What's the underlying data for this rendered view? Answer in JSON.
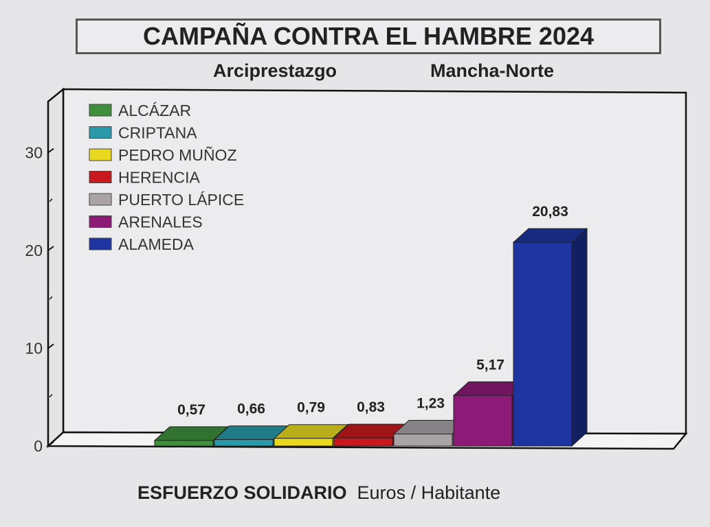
{
  "chart_data": {
    "type": "bar",
    "style": "3d",
    "title": "CAMPAÑA CONTRA EL HAMBRE 2024",
    "subtitle_left": "Arciprestazgo",
    "subtitle_right": "Mancha-Norte",
    "xlabel_bold": "ESFUERZO SOLIDARIO",
    "xlabel_rest": "Euros / Habitante",
    "ylim": [
      0,
      33
    ],
    "yticks": [
      "0",
      "10",
      "20",
      "30"
    ],
    "legend_position": "top-left",
    "categories": [
      "ALCÁZAR",
      "CRIPTANA",
      "PEDRO MUÑOZ",
      "HERENCIA",
      "PUERTO LÁPICE",
      "ARENALES",
      "ALAMEDA"
    ],
    "values": [
      0.57,
      0.66,
      0.79,
      0.83,
      1.23,
      5.17,
      20.83
    ],
    "data_labels": [
      "0,57",
      "0,66",
      "0,79",
      "0,83",
      "1,23",
      "5,17",
      "20,83"
    ],
    "colors": [
      "#3f8f3c",
      "#2a9aaa",
      "#e8d820",
      "#c81a1e",
      "#a9a3a6",
      "#8e1a78",
      "#1e34a0"
    ]
  }
}
